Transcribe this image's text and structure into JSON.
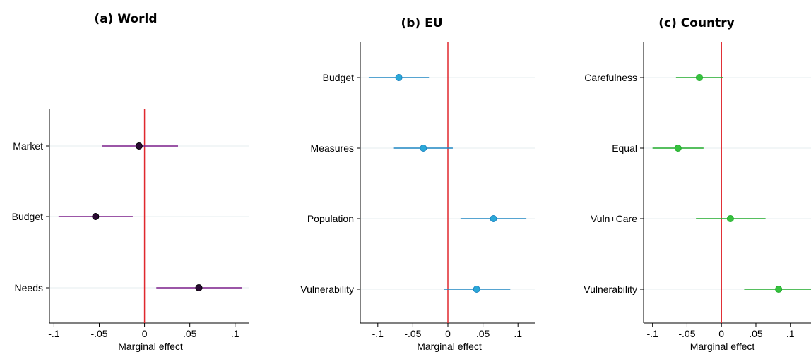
{
  "chart_data": [
    {
      "type": "scatter",
      "title": "(a) World",
      "xlabel": "Marginal effect",
      "xlim": [
        -0.105,
        0.115
      ],
      "xticks": [
        -0.1,
        -0.05,
        0,
        0.05,
        0.1
      ],
      "xtick_labels": [
        "-.1",
        "-.05",
        "0",
        ".05",
        ".1"
      ],
      "categories": [
        "Market",
        "Budget",
        "Needs"
      ],
      "estimates": [
        -0.006,
        -0.054,
        0.06
      ],
      "ci_low": [
        -0.047,
        -0.095,
        0.013
      ],
      "ci_high": [
        0.037,
        -0.013,
        0.108
      ],
      "reference_line": 0,
      "color": "#7a1f8a",
      "marker_color": "#2a0a33",
      "reference_color": "#e0282e",
      "grid": true
    },
    {
      "type": "scatter",
      "title": "(b) EU",
      "xlabel": "Marginal effect",
      "xlim": [
        -0.125,
        0.125
      ],
      "xticks": [
        -0.1,
        -0.05,
        0,
        0.05,
        0.1
      ],
      "xtick_labels": [
        "-.1",
        "-.05",
        "0",
        ".05",
        ".1"
      ],
      "categories": [
        "Budget",
        "Measures",
        "Population",
        "Vulnerability"
      ],
      "estimates": [
        -0.07,
        -0.035,
        0.065,
        0.041
      ],
      "ci_low": [
        -0.113,
        -0.077,
        0.018,
        -0.006
      ],
      "ci_high": [
        -0.027,
        0.007,
        0.112,
        0.089
      ],
      "reference_line": 0,
      "color": "#1f85c2",
      "marker_color": "#2aa8d8",
      "reference_color": "#e0282e",
      "grid": true
    },
    {
      "type": "scatter",
      "title": "(c) Country",
      "xlabel": "Marginal effect",
      "xlim": [
        -0.113,
        0.13
      ],
      "xticks": [
        -0.1,
        -0.05,
        0,
        0.05,
        0.1
      ],
      "xtick_labels": [
        "-.1",
        "-.05",
        "0",
        ".05",
        ".1"
      ],
      "categories": [
        "Carefulness",
        "Equal",
        "Vuln+Care",
        "Vulnerability"
      ],
      "estimates": [
        -0.032,
        -0.063,
        0.013,
        0.083
      ],
      "ci_low": [
        -0.066,
        -0.1,
        -0.037,
        0.033
      ],
      "ci_high": [
        0.002,
        -0.026,
        0.064,
        0.133
      ],
      "reference_line": 0,
      "color": "#1faa2a",
      "marker_color": "#36c23e",
      "reference_color": "#e0282e",
      "grid": true
    }
  ]
}
